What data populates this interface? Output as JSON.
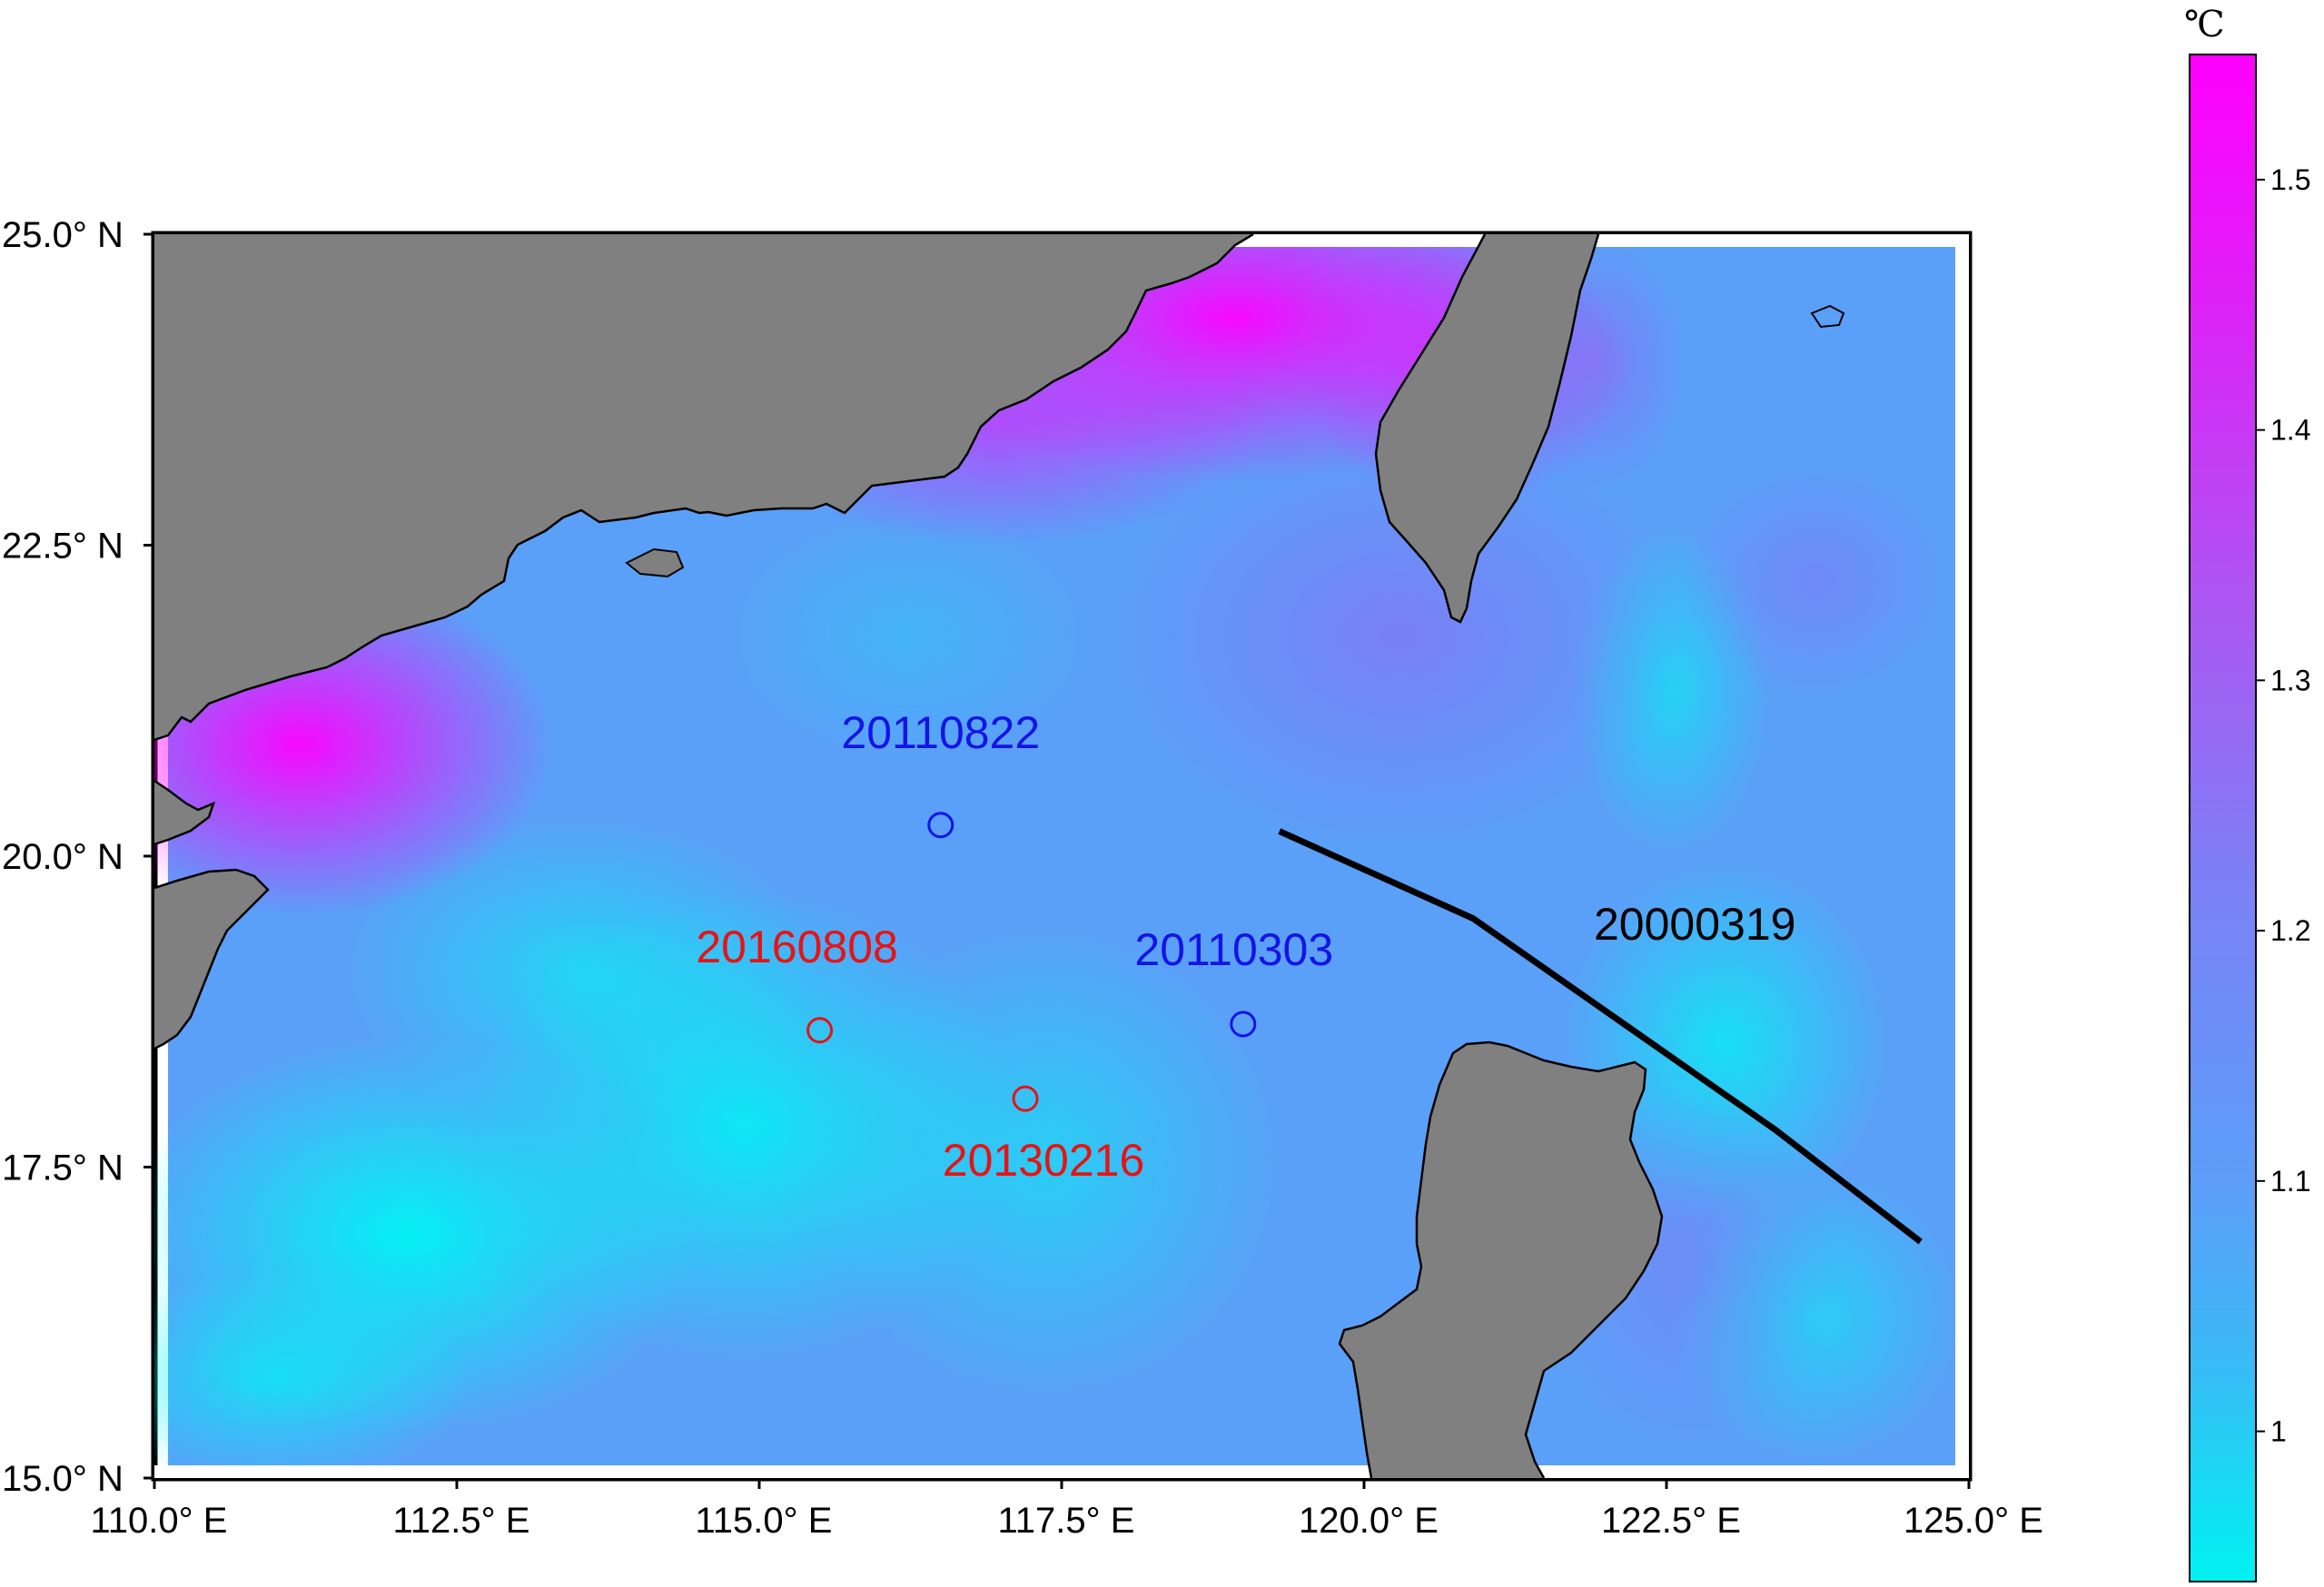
{
  "map": {
    "colors": {
      "land": "#808080",
      "ocean_low": "#00f0f0",
      "ocean_mid": "#5aa0f8",
      "ocean_high": "#ff00ff",
      "frame": "#000000",
      "coastline": "#000000"
    },
    "x_ticks": [
      {
        "lon": 110.0,
        "label": "110.0° E"
      },
      {
        "lon": 112.5,
        "label": "112.5° E"
      },
      {
        "lon": 115.0,
        "label": "115.0° E"
      },
      {
        "lon": 117.5,
        "label": "117.5° E"
      },
      {
        "lon": 120.0,
        "label": "120.0° E"
      },
      {
        "lon": 122.5,
        "label": "122.5° E"
      },
      {
        "lon": 125.0,
        "label": "125.0° E"
      }
    ],
    "y_ticks": [
      {
        "lat": 25.0,
        "label": "25.0° N"
      },
      {
        "lat": 22.5,
        "label": "22.5° N"
      },
      {
        "lat": 20.0,
        "label": "20.0° N"
      },
      {
        "lat": 17.5,
        "label": "17.5° N"
      },
      {
        "lat": 15.0,
        "label": "15.0° N"
      }
    ],
    "extent": {
      "lon": [
        110.0,
        125.0
      ],
      "lat": [
        15.0,
        25.0
      ]
    },
    "sites": [
      {
        "id": "20110822",
        "label": "20110822",
        "lon": 116.5,
        "lat": 20.25,
        "color": "#1414e6"
      },
      {
        "id": "20110303",
        "label": "20110303",
        "lon": 119.0,
        "lat": 18.65,
        "color": "#1414e6"
      },
      {
        "id": "20160808",
        "label": "20160808",
        "lon": 115.5,
        "lat": 18.6,
        "color": "#e61414"
      },
      {
        "id": "20130216",
        "label": "20130216",
        "lon": 117.2,
        "lat": 18.05,
        "color": "#e61414"
      }
    ],
    "track": {
      "label": "20000319",
      "color": "#000000",
      "points": [
        [
          119.3,
          20.2
        ],
        [
          120.9,
          19.5
        ],
        [
          123.4,
          17.8
        ],
        [
          124.6,
          16.9
        ]
      ]
    }
  },
  "colorbar": {
    "unit": "℃",
    "min": 0.94,
    "max": 1.55,
    "ticks": [
      {
        "value": 1.0,
        "label": "1"
      },
      {
        "value": 1.1,
        "label": "1.1"
      },
      {
        "value": 1.2,
        "label": "1.2"
      },
      {
        "value": 1.3,
        "label": "1.3"
      },
      {
        "value": 1.4,
        "label": "1.4"
      },
      {
        "value": 1.5,
        "label": "1.5"
      }
    ]
  }
}
